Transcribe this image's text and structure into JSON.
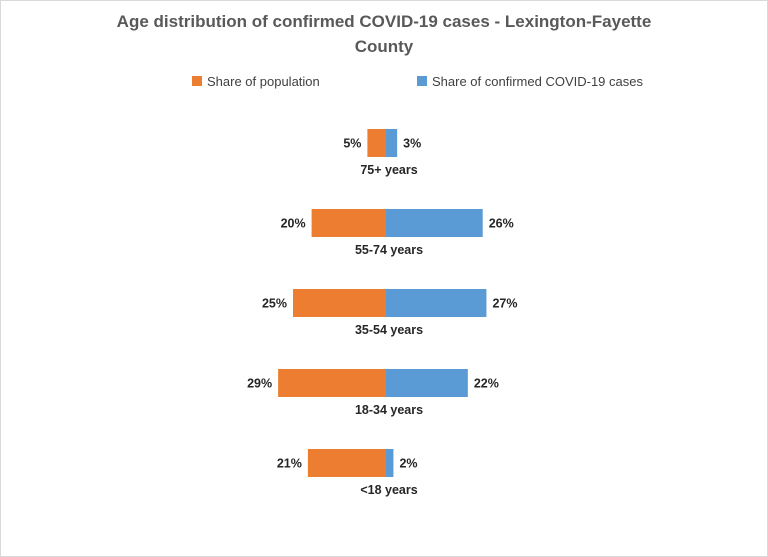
{
  "chart_data": {
    "type": "bar",
    "title_line1": "Age distribution of confirmed COVID-19 cases -  Lexington-Fayette",
    "title_line2": "County",
    "categories": [
      "75+ years",
      "55-74 years",
      "35-54 years",
      "18-34 years",
      "<18 years"
    ],
    "series": [
      {
        "name": "Share of population",
        "values": [
          5,
          20,
          25,
          29,
          21
        ],
        "labels": [
          "5%",
          "20%",
          "25%",
          "29%",
          "21%"
        ],
        "color": "#ED7D31"
      },
      {
        "name": "Share of confirmed COVID-19 cases",
        "values": [
          3,
          26,
          27,
          22,
          2
        ],
        "labels": [
          "3%",
          "26%",
          "27%",
          "22%",
          "2%"
        ],
        "color": "#5B9BD5"
      }
    ],
    "orientation": "horizontal-butterfly",
    "legend_position": "top",
    "grid": false
  }
}
